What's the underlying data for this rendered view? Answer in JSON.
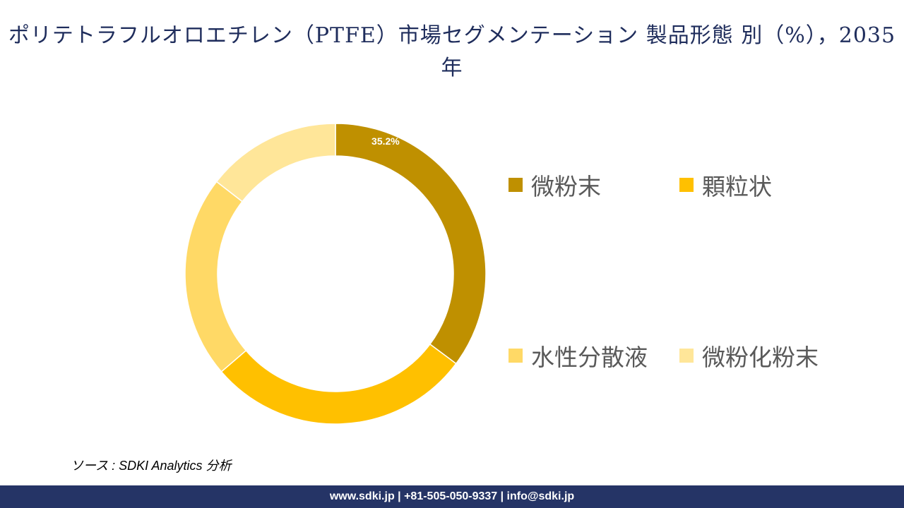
{
  "title": "ポリテトラフルオロエチレン（PTFE）市場セグメンテーション 製品形態 別（%），2035年",
  "chart_data": {
    "type": "pie",
    "donut": true,
    "categories": [
      "微粉末",
      "顆粒状",
      "水性分散液",
      "微粉化粉末"
    ],
    "values": [
      35.2,
      28.5,
      21.8,
      14.5
    ],
    "colors": [
      "#BF9000",
      "#FFC000",
      "#FFD966",
      "#FFE699"
    ],
    "data_labels": [
      "35.2%",
      "",
      "",
      ""
    ],
    "legend_position": "right"
  },
  "source": "ソース : SDKI Analytics 分析",
  "footer": "www.sdki.jp | +81-505-050-9337 | info@sdki.jp"
}
